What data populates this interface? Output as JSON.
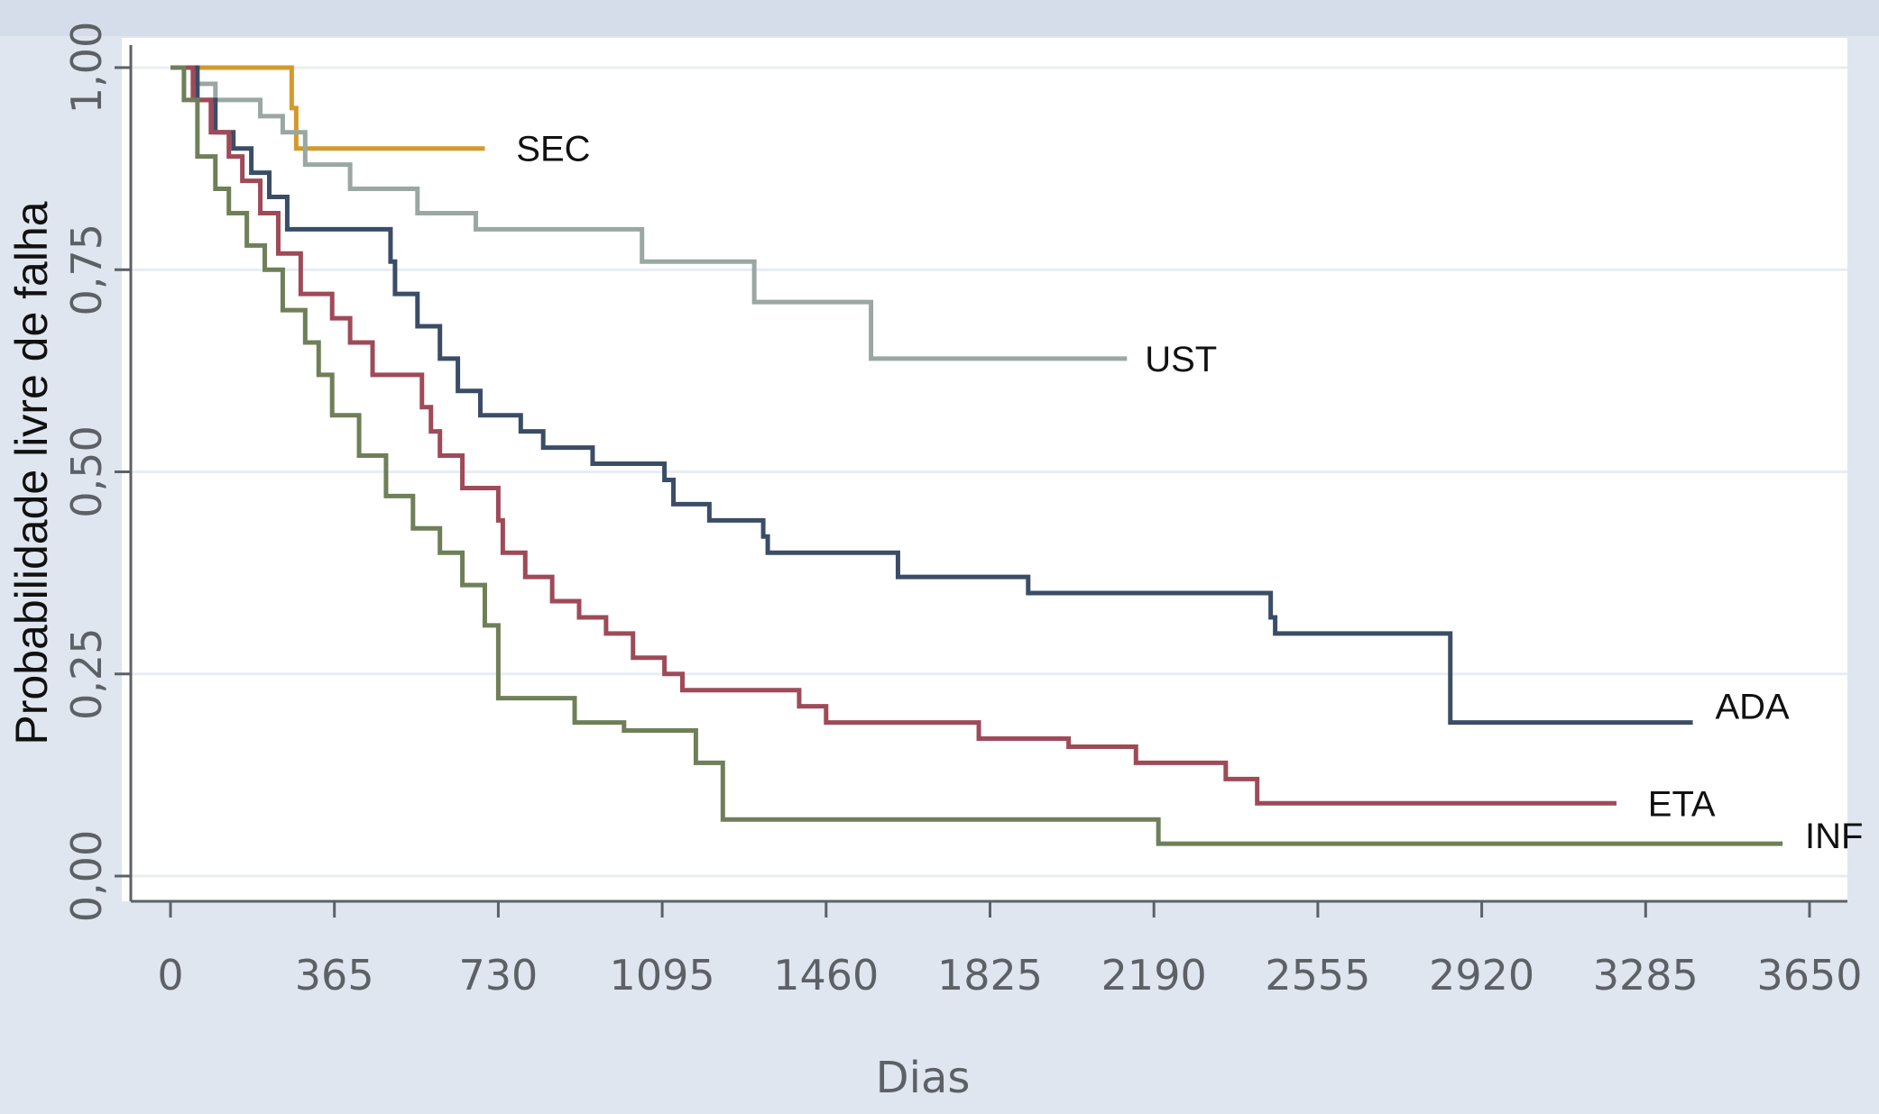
{
  "chart_data": {
    "type": "line",
    "title": "",
    "xlabel": "Dias",
    "ylabel": "Probabilidade livre de falha",
    "xlim": [
      0,
      3650
    ],
    "ylim": [
      0,
      1
    ],
    "x_ticks": [
      0,
      365,
      730,
      1095,
      1460,
      1825,
      2190,
      2555,
      2920,
      3285,
      3650
    ],
    "x_tick_labels": [
      "0",
      "365",
      "730",
      "1095",
      "1460",
      "1825",
      "2190",
      "2555",
      "2920",
      "3285",
      "3650"
    ],
    "y_ticks": [
      0,
      0.25,
      0.5,
      0.75,
      1
    ],
    "y_tick_labels": [
      "0,00",
      "0,25",
      "0,50",
      "0,75",
      "1,00"
    ],
    "grid": "horizontal",
    "series": [
      {
        "name": "SEC",
        "color": "#d39a2c",
        "step": true,
        "x": [
          0,
          270,
          280,
          700
        ],
        "y": [
          1.0,
          0.95,
          0.9,
          0.9
        ]
      },
      {
        "name": "UST",
        "color": "#9aa7a3",
        "step": true,
        "x": [
          0,
          50,
          100,
          200,
          250,
          300,
          400,
          550,
          680,
          1050,
          1300,
          1560,
          2130
        ],
        "y": [
          1.0,
          0.98,
          0.96,
          0.94,
          0.92,
          0.88,
          0.85,
          0.82,
          0.8,
          0.76,
          0.71,
          0.64,
          0.64
        ]
      },
      {
        "name": "ADA",
        "color": "#3b4d66",
        "step": true,
        "x": [
          0,
          60,
          100,
          140,
          180,
          220,
          260,
          470,
          490,
          500,
          550,
          600,
          640,
          690,
          780,
          830,
          940,
          1100,
          1120,
          1200,
          1320,
          1330,
          1600,
          1620,
          1900,
          1910,
          1950,
          2000,
          2450,
          2460,
          2840,
          2850,
          3390
        ],
        "y": [
          1.0,
          0.96,
          0.92,
          0.9,
          0.87,
          0.84,
          0.8,
          0.8,
          0.76,
          0.72,
          0.68,
          0.64,
          0.6,
          0.57,
          0.55,
          0.53,
          0.51,
          0.49,
          0.46,
          0.44,
          0.42,
          0.4,
          0.4,
          0.37,
          0.37,
          0.35,
          0.35,
          0.35,
          0.32,
          0.3,
          0.3,
          0.19,
          0.19
        ]
      },
      {
        "name": "ETA",
        "color": "#9e4a58",
        "step": true,
        "x": [
          0,
          50,
          90,
          130,
          160,
          200,
          240,
          290,
          360,
          400,
          450,
          560,
          580,
          600,
          650,
          730,
          740,
          790,
          850,
          910,
          970,
          1030,
          1100,
          1140,
          1400,
          1460,
          1700,
          1800,
          2000,
          2150,
          2350,
          2420,
          3220
        ],
        "y": [
          1.0,
          0.96,
          0.92,
          0.89,
          0.86,
          0.82,
          0.77,
          0.72,
          0.69,
          0.66,
          0.62,
          0.58,
          0.55,
          0.52,
          0.48,
          0.44,
          0.4,
          0.37,
          0.34,
          0.32,
          0.3,
          0.27,
          0.25,
          0.23,
          0.21,
          0.19,
          0.19,
          0.17,
          0.16,
          0.14,
          0.12,
          0.09,
          0.09
        ]
      },
      {
        "name": "INF",
        "color": "#6f7f58",
        "step": true,
        "x": [
          0,
          30,
          60,
          100,
          130,
          170,
          210,
          250,
          300,
          330,
          360,
          420,
          480,
          540,
          600,
          650,
          700,
          730,
          900,
          1010,
          1170,
          1230,
          2180,
          2200,
          2500,
          3590
        ],
        "y": [
          1.0,
          0.96,
          0.89,
          0.85,
          0.82,
          0.78,
          0.75,
          0.7,
          0.66,
          0.62,
          0.57,
          0.52,
          0.47,
          0.43,
          0.4,
          0.36,
          0.31,
          0.22,
          0.19,
          0.18,
          0.14,
          0.07,
          0.07,
          0.04,
          0.04,
          0.04
        ]
      }
    ],
    "series_labels": [
      {
        "series": "SEC",
        "text": "SEC",
        "at_x": 770,
        "at_y": 0.9
      },
      {
        "series": "UST",
        "text": "UST",
        "at_x": 2170,
        "at_y": 0.64
      },
      {
        "series": "ADA",
        "text": "ADA",
        "at_x": 3440,
        "at_y": 0.21
      },
      {
        "series": "ETA",
        "text": "ETA",
        "at_x": 3290,
        "at_y": 0.09
      },
      {
        "series": "INF",
        "text": "INF",
        "at_x": 3640,
        "at_y": 0.05
      }
    ],
    "colors": {
      "page_background": "#dfe6f0",
      "plot_background": "#ffffff",
      "gridline": "#e8edf3",
      "axis": "#5d6166",
      "tick_label": "#5d6166"
    }
  }
}
